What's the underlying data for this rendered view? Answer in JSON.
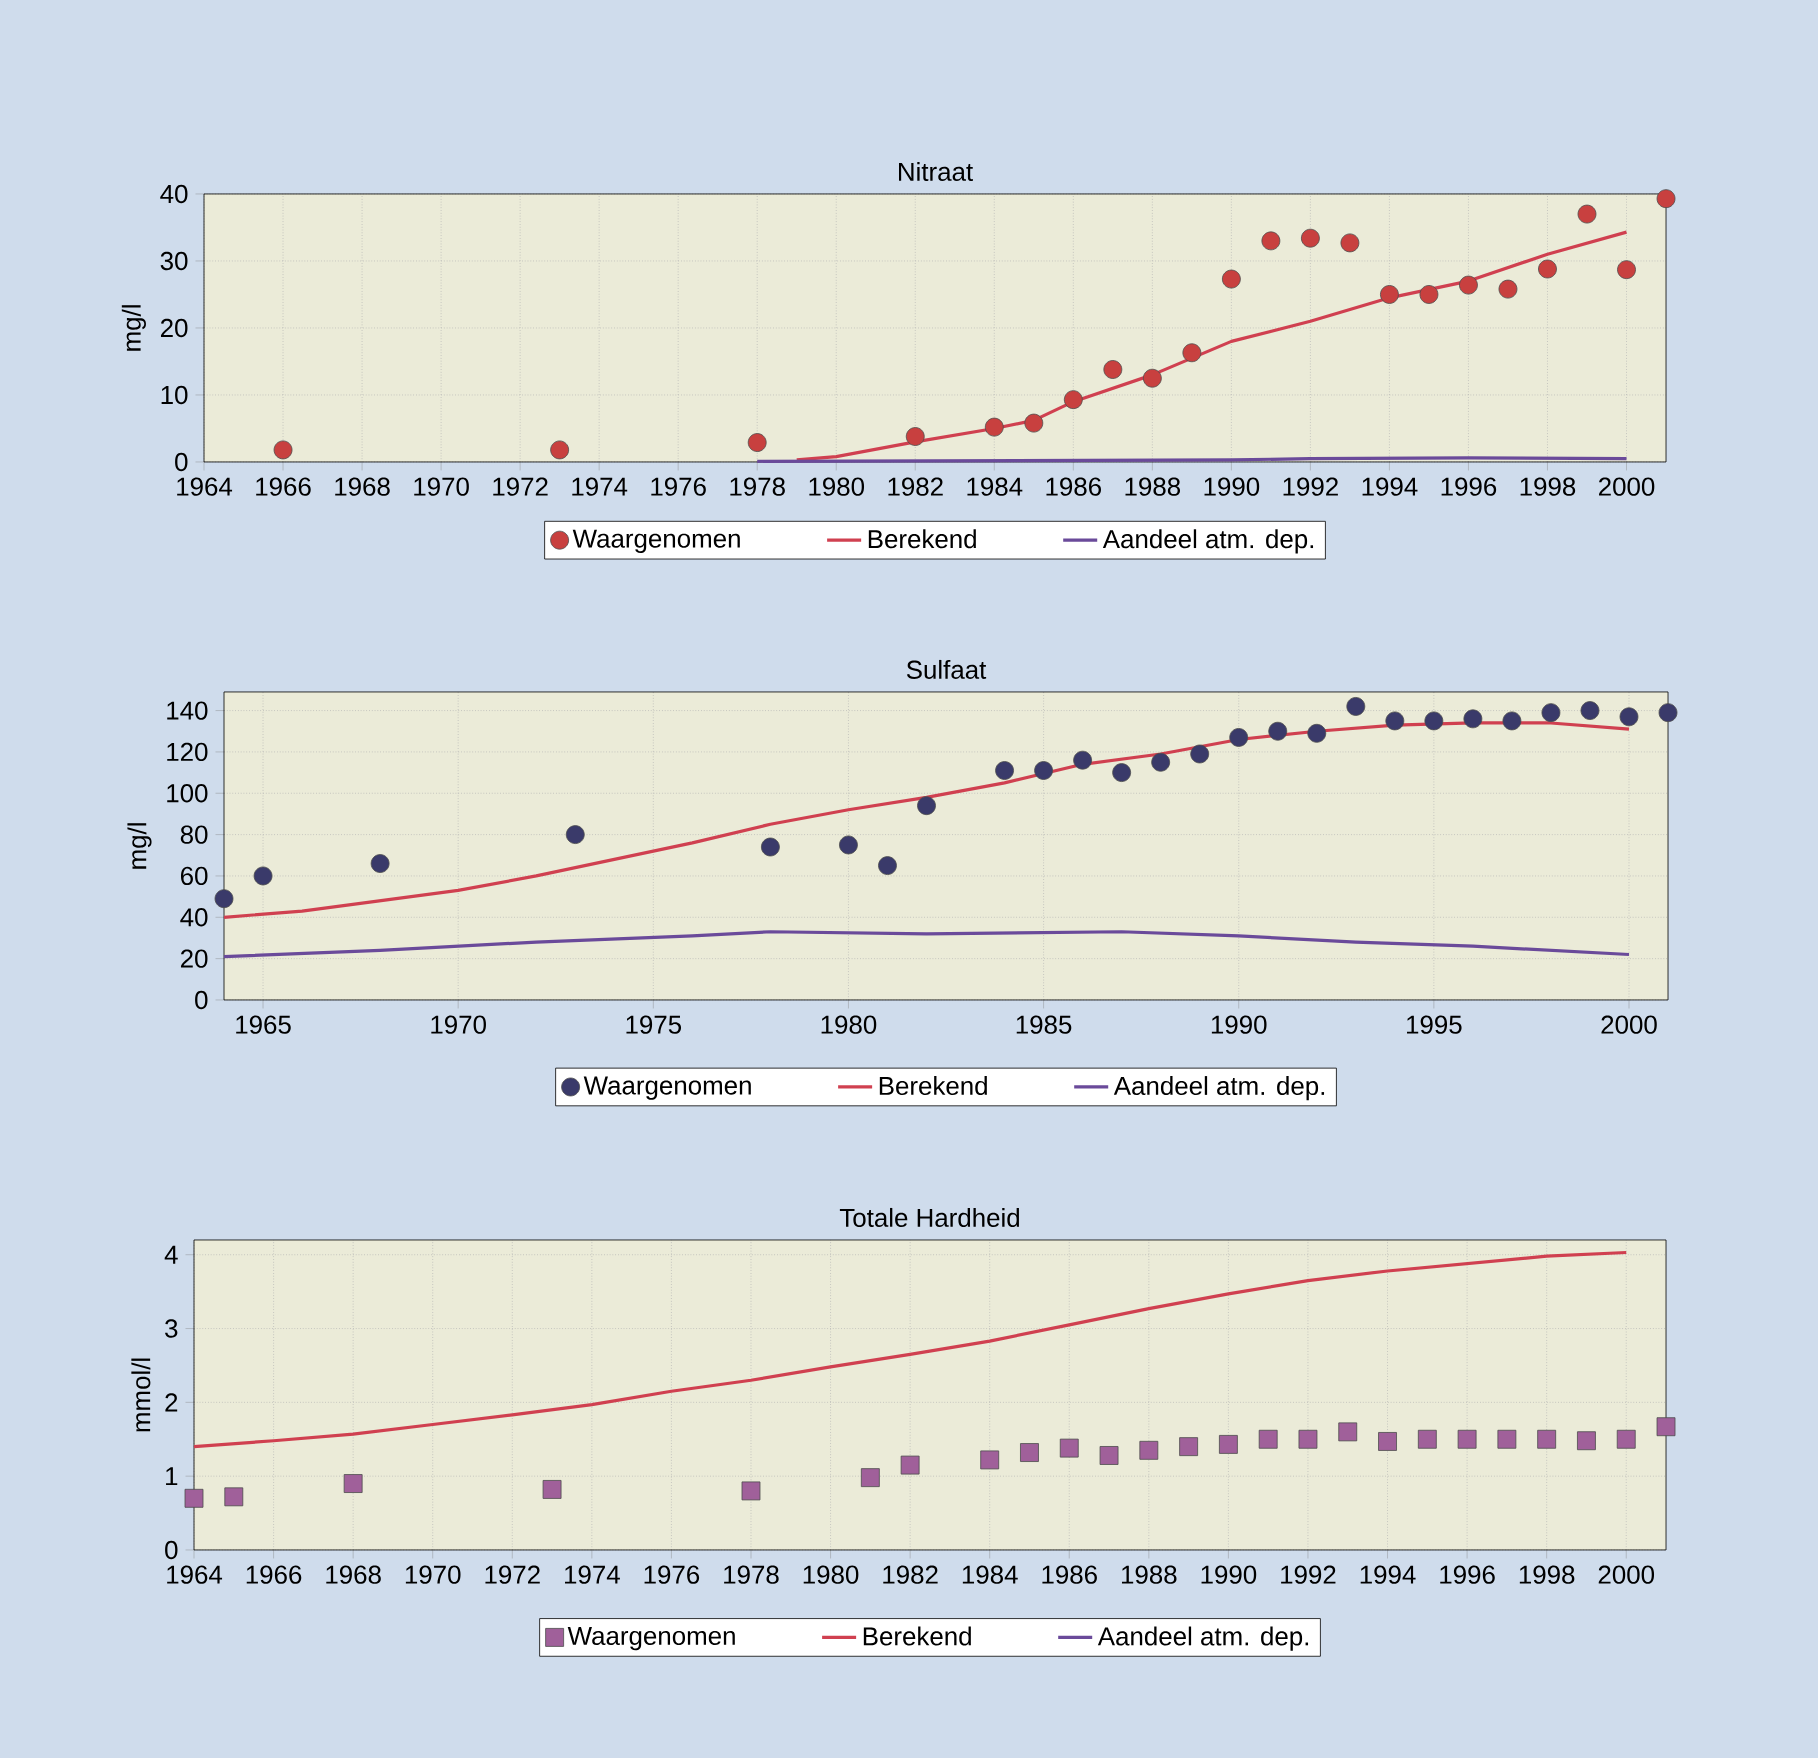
{
  "chart_data": [
    {
      "type": "line",
      "title": "Nitraat",
      "ylabel": "mg/l",
      "xlim": [
        1964,
        2001
      ],
      "ylim": [
        0,
        40
      ],
      "xticks": [
        1964,
        1966,
        1968,
        1970,
        1972,
        1974,
        1976,
        1978,
        1980,
        1982,
        1984,
        1986,
        1988,
        1990,
        1992,
        1994,
        1996,
        1998,
        2000
      ],
      "yticks": [
        0,
        10,
        20,
        30,
        40
      ],
      "grid": true,
      "legend": "bottom",
      "series": [
        {
          "name": "Waargenomen",
          "type": "scatter",
          "marker": "circle",
          "color": "#c8403f",
          "x": [
            1966,
            1973,
            1978,
            1982,
            1984,
            1985,
            1986,
            1987,
            1988,
            1989,
            1990,
            1991,
            1992,
            1993,
            1994,
            1995,
            1996,
            1997,
            1998,
            1999,
            2000,
            2001
          ],
          "values": [
            1.8,
            1.8,
            2.9,
            3.8,
            5.2,
            5.8,
            9.3,
            13.8,
            12.5,
            16.3,
            27.3,
            33,
            33.4,
            32.7,
            25,
            25,
            26.4,
            25.8,
            28.8,
            37,
            28.7,
            39.3
          ]
        },
        {
          "name": "Berekend",
          "color": "#d04050",
          "x": [
            1979,
            1980,
            1982,
            1984,
            1985,
            1986,
            1988,
            1990,
            1992,
            1994,
            1996,
            1998,
            2000
          ],
          "values": [
            0.3,
            0.8,
            3,
            5,
            6.2,
            9,
            13,
            18,
            21,
            24.5,
            27,
            31,
            34.3
          ]
        },
        {
          "name": "Aandeel atm. dep.",
          "color": "#6a4a9a",
          "x": [
            1978,
            1984,
            1990,
            1992,
            1996,
            2000
          ],
          "values": [
            0.1,
            0.2,
            0.3,
            0.5,
            0.6,
            0.5
          ]
        }
      ]
    },
    {
      "type": "line",
      "title": "Sulfaat",
      "ylabel": "mg/l",
      "xlim": [
        1964,
        2001
      ],
      "ylim": [
        0,
        149
      ],
      "xticks": [
        1965,
        1970,
        1975,
        1980,
        1985,
        1990,
        1995,
        2000
      ],
      "yticks": [
        0,
        20,
        40,
        60,
        80,
        100,
        120,
        140
      ],
      "grid": true,
      "legend": "bottom",
      "series": [
        {
          "name": "Waargenomen",
          "type": "scatter",
          "marker": "circle",
          "color": "#3a3a6a",
          "x": [
            1964,
            1965,
            1968,
            1973,
            1978,
            1980,
            1981,
            1982,
            1984,
            1985,
            1986,
            1987,
            1988,
            1989,
            1990,
            1991,
            1992,
            1993,
            1994,
            1995,
            1996,
            1997,
            1998,
            1999,
            2000,
            2001
          ],
          "values": [
            49,
            60,
            66,
            80,
            74,
            75,
            65,
            94,
            111,
            111,
            116,
            110,
            115,
            119,
            127,
            130,
            129,
            142,
            135,
            135,
            136,
            135,
            139,
            140,
            137,
            139
          ]
        },
        {
          "name": "Berekend",
          "color": "#d04050",
          "x": [
            1964,
            1966,
            1968,
            1970,
            1972,
            1974,
            1976,
            1978,
            1980,
            1982,
            1984,
            1986,
            1988,
            1990,
            1992,
            1994,
            1996,
            1998,
            2000
          ],
          "values": [
            40,
            43,
            48,
            53,
            60,
            68,
            76,
            85,
            92,
            98,
            105,
            114,
            119,
            126,
            130,
            133,
            134,
            134,
            131
          ]
        },
        {
          "name": "Aandeel atm. dep.",
          "color": "#6a4a9a",
          "x": [
            1964,
            1968,
            1972,
            1976,
            1978,
            1982,
            1987,
            1990,
            1993,
            1996,
            2000
          ],
          "values": [
            21,
            24,
            28,
            31,
            33,
            32,
            33,
            31,
            28,
            26,
            22
          ]
        }
      ]
    },
    {
      "type": "line",
      "title": "Totale Hardheid",
      "ylabel": "mmol/l",
      "xlim": [
        1964,
        2001
      ],
      "ylim": [
        0,
        4.2
      ],
      "xticks": [
        1964,
        1966,
        1968,
        1970,
        1972,
        1974,
        1976,
        1978,
        1980,
        1982,
        1984,
        1986,
        1988,
        1990,
        1992,
        1994,
        1996,
        1998,
        2000
      ],
      "yticks": [
        0,
        1,
        2,
        3,
        4
      ],
      "grid": true,
      "legend": "bottom",
      "series": [
        {
          "name": "Waargenomen",
          "type": "scatter",
          "marker": "square",
          "color": "#a0609a",
          "x": [
            1964,
            1965,
            1968,
            1973,
            1978,
            1981,
            1982,
            1984,
            1985,
            1986,
            1987,
            1988,
            1989,
            1990,
            1991,
            1992,
            1993,
            1994,
            1995,
            1996,
            1997,
            1998,
            1999,
            2000,
            2001
          ],
          "values": [
            0.7,
            0.72,
            0.9,
            0.82,
            0.8,
            0.98,
            1.15,
            1.22,
            1.32,
            1.38,
            1.28,
            1.35,
            1.4,
            1.43,
            1.5,
            1.5,
            1.6,
            1.47,
            1.5,
            1.5,
            1.5,
            1.5,
            1.48,
            1.5,
            1.67
          ]
        },
        {
          "name": "Berekend",
          "color": "#d04050",
          "x": [
            1964,
            1966,
            1968,
            1970,
            1972,
            1974,
            1976,
            1978,
            1980,
            1982,
            1984,
            1986,
            1988,
            1990,
            1992,
            1994,
            1996,
            1998,
            2000
          ],
          "values": [
            1.4,
            1.48,
            1.57,
            1.7,
            1.83,
            1.97,
            2.15,
            2.3,
            2.48,
            2.65,
            2.83,
            3.05,
            3.27,
            3.47,
            3.65,
            3.78,
            3.88,
            3.98,
            4.03
          ]
        },
        {
          "name": "Aandeel atm. dep.",
          "color": "#6a4a9a"
        }
      ]
    }
  ]
}
